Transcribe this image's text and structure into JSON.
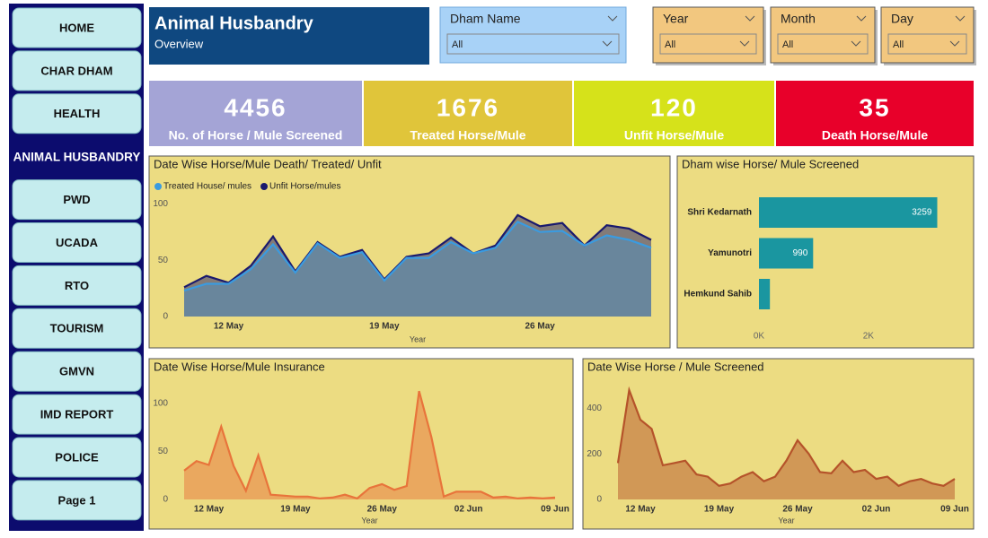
{
  "nav": [
    "HOME",
    "CHAR DHAM",
    "HEALTH",
    "ANIMAL HUSBANDRY",
    "PWD",
    "UCADA",
    "RTO",
    "TOURISM",
    "GMVN",
    "IMD REPORT",
    "POLICE",
    "Page 1"
  ],
  "header": {
    "title": "Animal Husbandry",
    "subtitle": "Overview"
  },
  "filters": [
    {
      "label": "Dham Name",
      "value": "All"
    },
    {
      "label": "Year",
      "value": "All"
    },
    {
      "label": "Month",
      "value": "All"
    },
    {
      "label": "Day",
      "value": "All"
    }
  ],
  "kpis": [
    {
      "value": 4456,
      "label": "No. of Horse / Mule Screened"
    },
    {
      "value": 1676,
      "label": "Treated Horse/Mule"
    },
    {
      "value": 120,
      "label": "Unfit Horse/Mule"
    },
    {
      "value": 35,
      "label": "Death Horse/Mule"
    }
  ],
  "chart_data": [
    {
      "type": "area",
      "title": "Date Wise Horse/Mule Death/ Treated/ Unfit",
      "categories": [
        null,
        null,
        "12 May",
        null,
        null,
        null,
        null,
        null,
        null,
        "19 May",
        null,
        null,
        null,
        null,
        null,
        null,
        "26 May",
        null,
        null,
        null,
        null,
        null
      ],
      "series": [
        {
          "name": "Treated House/ mules",
          "color": "#3a9be0",
          "values": [
            23,
            29,
            29,
            42,
            64,
            39,
            65,
            52,
            57,
            32,
            52,
            52,
            66,
            56,
            61,
            84,
            75,
            76,
            63,
            72,
            68,
            61
          ]
        },
        {
          "name": "Unfit Horse/mules",
          "color": "#1a1a6e",
          "values": [
            26,
            36,
            30,
            45,
            71,
            40,
            66,
            53,
            59,
            33,
            53,
            56,
            70,
            56,
            63,
            90,
            80,
            83,
            63,
            81,
            78,
            68
          ]
        }
      ],
      "ylim": [
        0,
        105
      ],
      "yticks": [
        0,
        50,
        100
      ],
      "x_label": "Year"
    },
    {
      "type": "hbar",
      "title": "Dham wise Horse/ Mule Screened",
      "categories": [
        "Shri Kedarnath",
        "Yamunotri",
        "Hemkund Sahib"
      ],
      "values": [
        3259,
        990,
        200
      ],
      "color": "#1a96a0",
      "xlim": [
        0,
        3300
      ],
      "xticks": [
        {
          "value": 0,
          "label": "0K"
        },
        {
          "value": 2000,
          "label": "2K"
        }
      ]
    },
    {
      "type": "area",
      "title": "Date Wise Horse/Mule Insurance",
      "categories": [
        null,
        null,
        "12 May",
        null,
        null,
        null,
        null,
        null,
        null,
        "19 May",
        null,
        null,
        null,
        null,
        null,
        null,
        "26 May",
        null,
        null,
        null,
        null,
        null,
        null,
        "02 Jun",
        null,
        null,
        null,
        null,
        null,
        null,
        "09 Jun"
      ],
      "series": [
        {
          "color": "#e8743b",
          "values": [
            30,
            40,
            36,
            76,
            35,
            9,
            46,
            5,
            4,
            3,
            3,
            1,
            2,
            5,
            1,
            12,
            16,
            10,
            14,
            113,
            65,
            3,
            8,
            8,
            8,
            2,
            3,
            1,
            2,
            1,
            2
          ]
        }
      ],
      "ylim": [
        0,
        115
      ],
      "yticks": [
        0,
        50,
        100
      ],
      "x_label": "Year"
    },
    {
      "type": "area",
      "title": "Date Wise Horse / Mule Screened",
      "categories": [
        null,
        null,
        "12 May",
        null,
        null,
        null,
        null,
        null,
        null,
        "19 May",
        null,
        null,
        null,
        null,
        null,
        null,
        "26 May",
        null,
        null,
        null,
        null,
        null,
        null,
        "02 Jun",
        null,
        null,
        null,
        null,
        null,
        null,
        "09 Jun"
      ],
      "series": [
        {
          "color": "#b5532a",
          "values": [
            160,
            480,
            350,
            310,
            150,
            160,
            170,
            110,
            100,
            60,
            70,
            100,
            120,
            80,
            100,
            170,
            260,
            200,
            120,
            115,
            170,
            120,
            130,
            90,
            100,
            60,
            80,
            90,
            70,
            60,
            90
          ]
        }
      ],
      "ylim": [
        0,
        500
      ],
      "yticks": [
        0,
        200,
        400
      ],
      "x_label": "Year"
    }
  ]
}
